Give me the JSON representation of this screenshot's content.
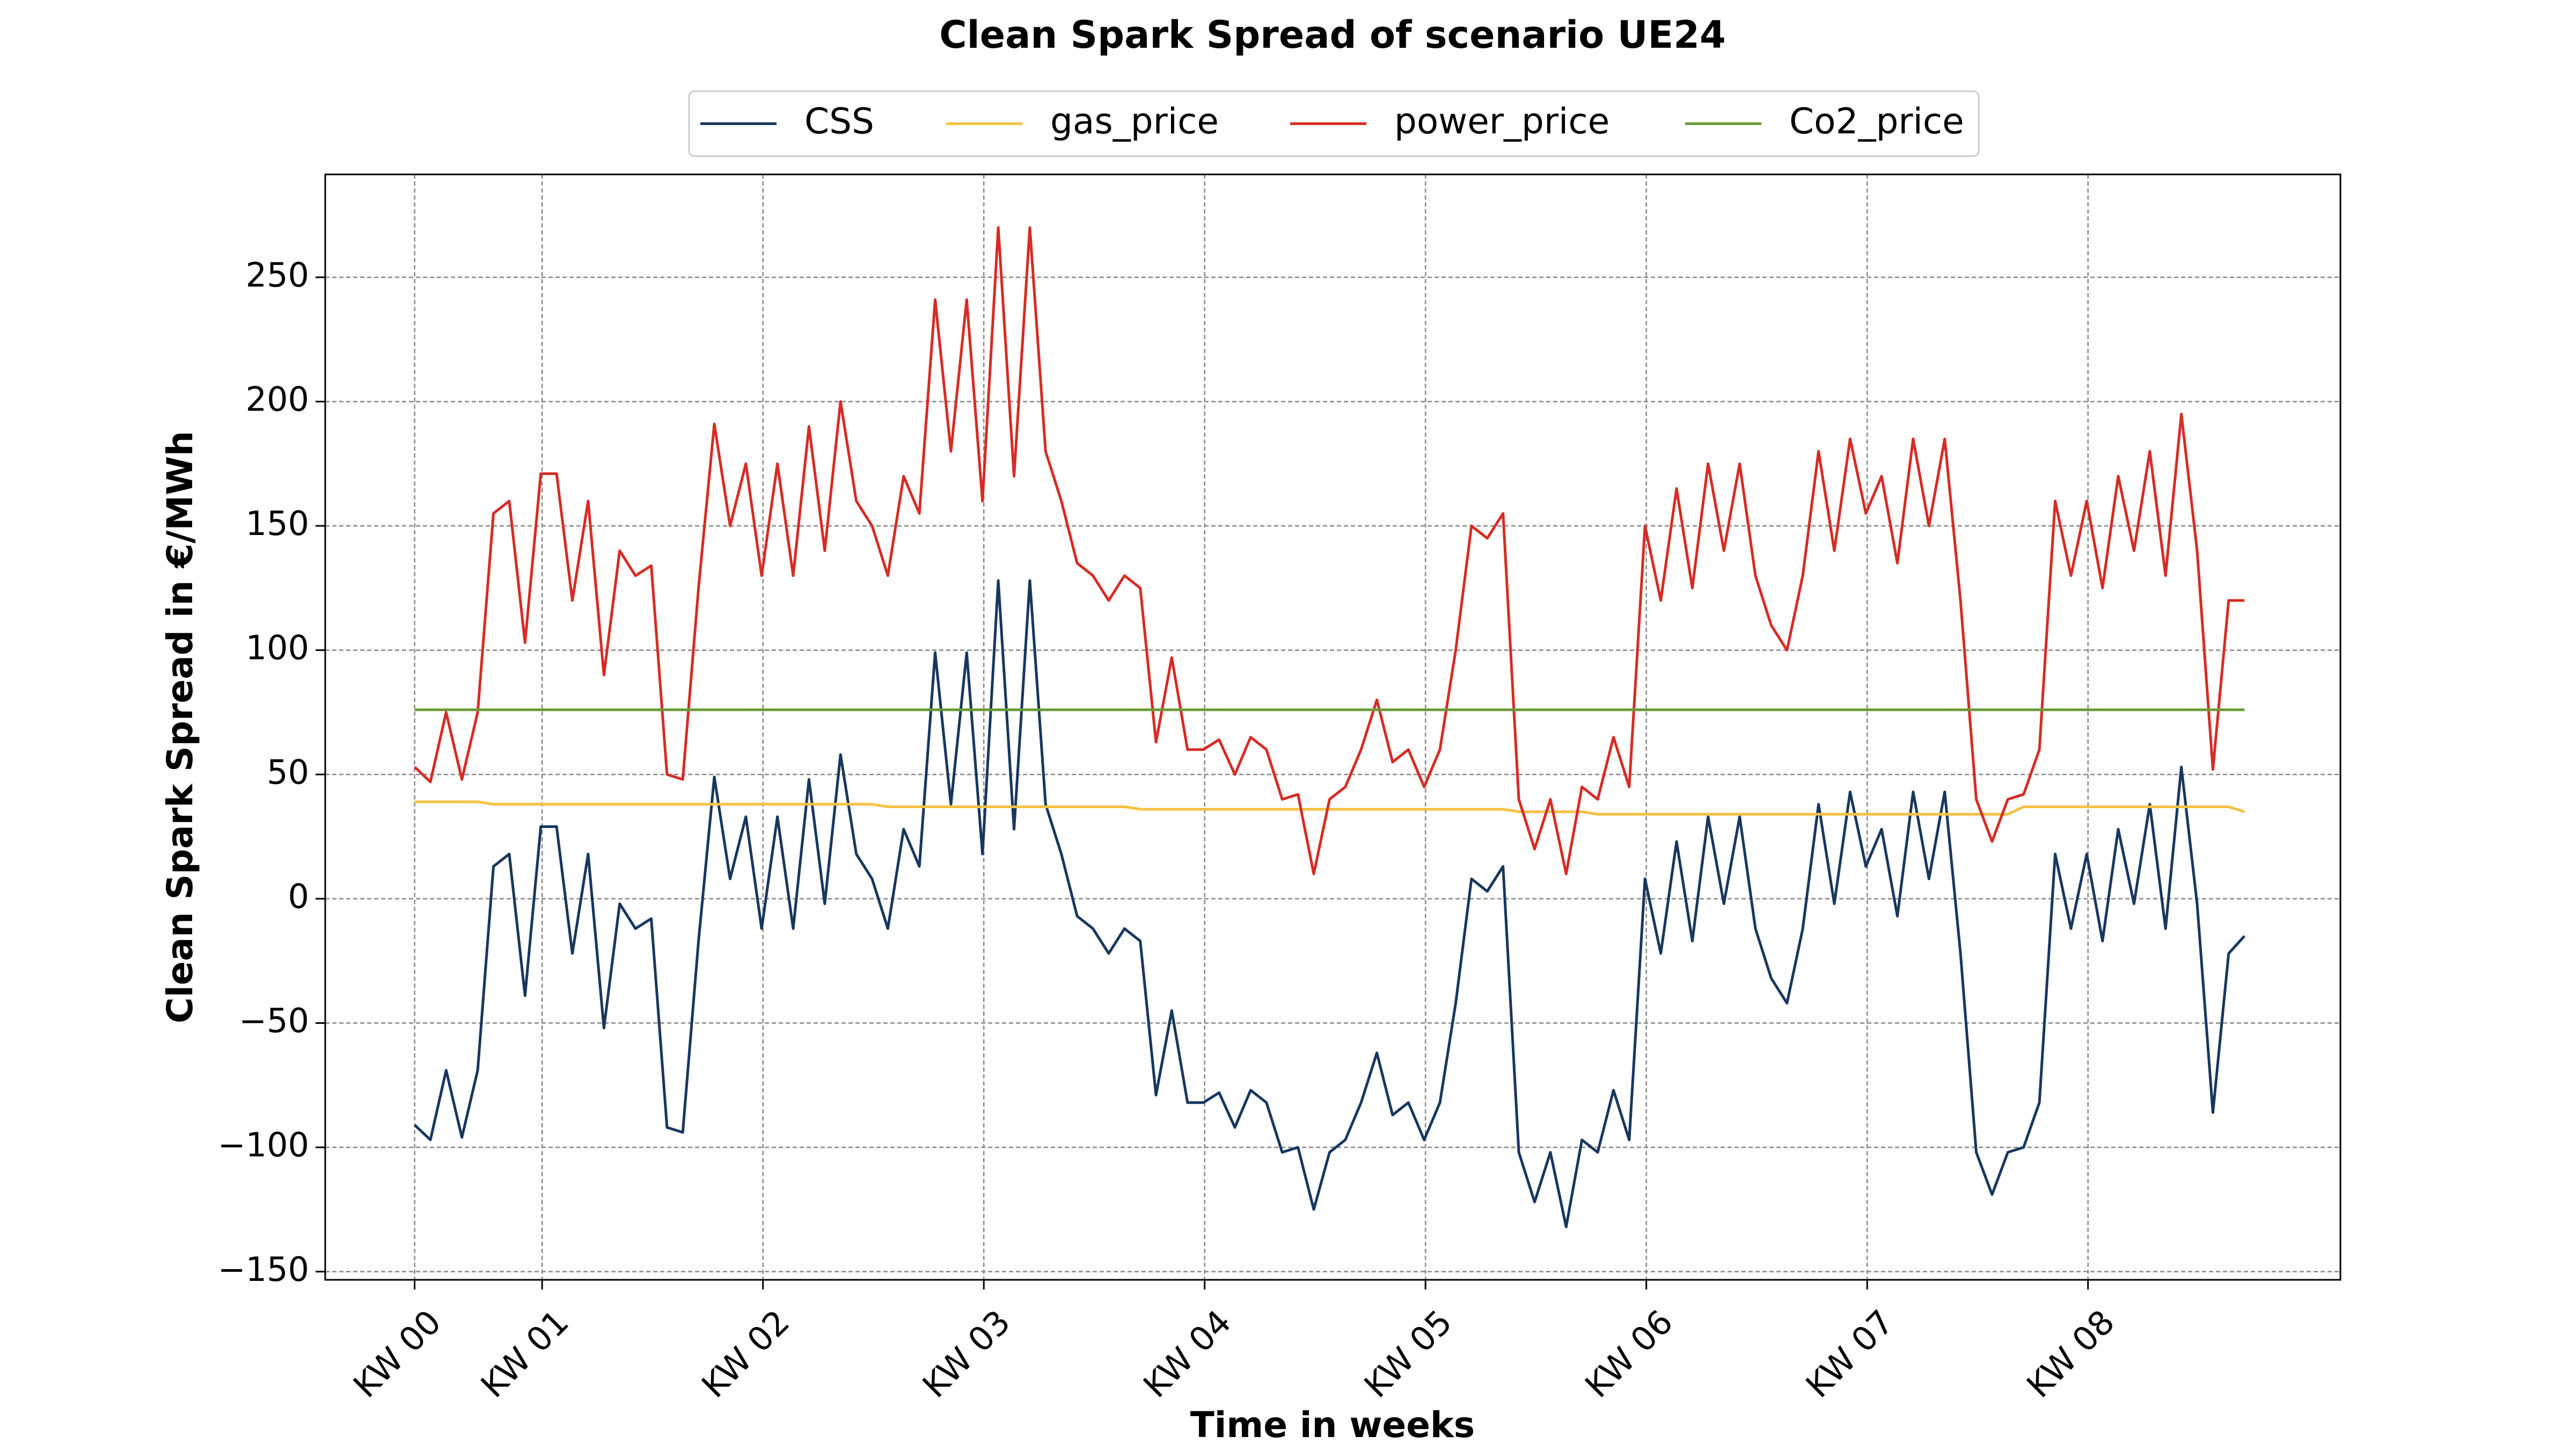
{
  "chart_data": {
    "type": "line",
    "title": "Clean Spark Spread of scenario UE24",
    "x_label": "Time in weeks",
    "y_label": "Clean Spark Spread in €/MWh",
    "x": [
      0,
      12,
      24,
      36,
      48,
      60,
      72,
      84,
      96,
      108,
      120,
      132,
      144,
      156,
      168,
      180,
      192,
      204,
      216,
      228,
      240,
      252,
      264,
      276,
      288,
      300,
      312,
      324,
      336,
      348,
      360,
      372,
      384,
      396,
      408,
      420,
      432,
      444,
      456,
      468,
      480,
      492,
      504,
      516,
      528,
      540,
      552,
      564,
      576,
      588,
      600,
      612,
      624,
      636,
      648,
      660,
      672,
      684,
      696,
      708,
      720,
      732,
      744,
      756,
      768,
      780,
      792,
      804,
      816,
      828,
      840,
      852,
      864,
      876,
      888,
      900,
      912,
      924,
      936,
      948,
      960,
      972,
      984,
      996,
      1008,
      1020,
      1032,
      1044,
      1056,
      1068,
      1080,
      1092,
      1104,
      1116,
      1128,
      1140,
      1152,
      1164,
      1176,
      1188,
      1200,
      1212,
      1224,
      1236,
      1248,
      1260,
      1272,
      1284,
      1296,
      1308,
      1320,
      1332,
      1344,
      1356,
      1368,
      1380,
      1392
    ],
    "series": [
      {
        "name": "CSS",
        "color": "#17375e",
        "values": [
          -91,
          -97,
          -69,
          -96,
          -69,
          13,
          18,
          -39,
          29,
          29,
          -22,
          18,
          -52,
          -2,
          -12,
          -8,
          -92,
          -94,
          -17,
          49,
          8,
          33,
          -12,
          33,
          -12,
          48,
          -2,
          58,
          18,
          8,
          -12,
          28,
          13,
          99,
          38,
          99,
          18,
          128,
          28,
          128,
          38,
          18,
          -7,
          -12,
          -22,
          -12,
          -17,
          -79,
          -45,
          -82,
          -82,
          -78,
          -92,
          -77,
          -82,
          -102,
          -100,
          -125,
          -102,
          -97,
          -82,
          -62,
          -87,
          -82,
          -97,
          -82,
          -42,
          8,
          3,
          13,
          -102,
          -122,
          -102,
          -132,
          -97,
          -102,
          -77,
          -97,
          8,
          -22,
          23,
          -17,
          33,
          -2,
          33,
          -12,
          -32,
          -42,
          -12,
          38,
          -2,
          43,
          13,
          28,
          -7,
          43,
          8,
          43,
          -22,
          -102,
          -119,
          -102,
          -100,
          -82,
          18,
          -12,
          18,
          -17,
          28,
          -2,
          38,
          -12,
          53,
          -2,
          -86,
          -22,
          -15
        ]
      },
      {
        "name": "gas_price",
        "color": "#f6c143",
        "values": [
          39,
          39,
          39,
          39,
          39,
          38,
          38,
          38,
          38,
          38,
          38,
          38,
          38,
          38,
          38,
          38,
          38,
          38,
          38,
          38,
          38,
          38,
          38,
          38,
          38,
          38,
          38,
          38,
          38,
          38,
          37,
          37,
          37,
          37,
          37,
          37,
          37,
          37,
          37,
          37,
          37,
          37,
          37,
          37,
          37,
          37,
          36,
          36,
          36,
          36,
          36,
          36,
          36,
          36,
          36,
          36,
          36,
          36,
          36,
          36,
          36,
          36,
          36,
          36,
          36,
          36,
          36,
          36,
          36,
          36,
          35,
          35,
          35,
          35,
          35,
          34,
          34,
          34,
          34,
          34,
          34,
          34,
          34,
          34,
          34,
          34,
          34,
          34,
          34,
          34,
          34,
          34,
          34,
          34,
          34,
          34,
          34,
          34,
          34,
          34,
          34,
          34,
          37,
          37,
          37,
          37,
          37,
          37,
          37,
          37,
          37,
          37,
          37,
          37,
          37,
          37,
          35
        ]
      },
      {
        "name": "power_price",
        "color": "#d62c24",
        "values": [
          53,
          47,
          75,
          48,
          75,
          155,
          160,
          103,
          171,
          171,
          120,
          160,
          90,
          140,
          130,
          134,
          50,
          48,
          125,
          191,
          150,
          175,
          130,
          175,
          130,
          190,
          140,
          200,
          160,
          150,
          130,
          170,
          155,
          241,
          180,
          241,
          160,
          270,
          170,
          270,
          180,
          160,
          135,
          130,
          120,
          130,
          125,
          63,
          97,
          60,
          60,
          64,
          50,
          65,
          60,
          40,
          42,
          10,
          40,
          45,
          60,
          80,
          55,
          60,
          45,
          60,
          100,
          150,
          145,
          155,
          40,
          20,
          40,
          10,
          45,
          40,
          65,
          45,
          150,
          120,
          165,
          125,
          175,
          140,
          175,
          130,
          110,
          100,
          130,
          180,
          140,
          185,
          155,
          170,
          135,
          185,
          150,
          185,
          120,
          40,
          23,
          40,
          42,
          60,
          160,
          130,
          160,
          125,
          170,
          140,
          180,
          130,
          195,
          140,
          52,
          120,
          120
        ]
      },
      {
        "name": "Co2_price",
        "color": "#6a9a3a",
        "values": [
          76,
          76,
          76,
          76,
          76,
          76,
          76,
          76,
          76,
          76,
          76,
          76,
          76,
          76,
          76,
          76,
          76,
          76,
          76,
          76,
          76,
          76,
          76,
          76,
          76,
          76,
          76,
          76,
          76,
          76,
          76,
          76,
          76,
          76,
          76,
          76,
          76,
          76,
          76,
          76,
          76,
          76,
          76,
          76,
          76,
          76,
          76,
          76,
          76,
          76,
          76,
          76,
          76,
          76,
          76,
          76,
          76,
          76,
          76,
          76,
          76,
          76,
          76,
          76,
          76,
          76,
          76,
          76,
          76,
          76,
          76,
          76,
          76,
          76,
          76,
          76,
          76,
          76,
          76,
          76,
          76,
          76,
          76,
          76,
          76,
          76,
          76,
          76,
          76,
          76,
          76,
          76,
          76,
          76,
          76,
          76,
          76,
          76,
          76,
          76,
          76,
          76,
          76,
          76,
          76,
          76,
          76,
          76,
          76,
          76,
          76,
          76,
          76,
          76,
          76,
          76,
          76
        ]
      }
    ],
    "xlim": [
      -68,
      1465
    ],
    "xticks": [
      {
        "value": 0,
        "label": "KW 00"
      },
      {
        "value": 97,
        "label": "KW 01"
      },
      {
        "value": 265,
        "label": "KW 02"
      },
      {
        "value": 433,
        "label": "KW 03"
      },
      {
        "value": 601,
        "label": "KW 04"
      },
      {
        "value": 769,
        "label": "KW 05"
      },
      {
        "value": 937,
        "label": "KW 06"
      },
      {
        "value": 1105,
        "label": "KW 07"
      },
      {
        "value": 1273,
        "label": "KW 08"
      }
    ],
    "ylim": [
      -153.3,
      291.4
    ],
    "yticks": [
      {
        "value": -150,
        "label": "−150"
      },
      {
        "value": -100,
        "label": "−100"
      },
      {
        "value": -50,
        "label": "−50"
      },
      0,
      50,
      100,
      150,
      200,
      250
    ],
    "grid": true,
    "legend": "upper center"
  }
}
